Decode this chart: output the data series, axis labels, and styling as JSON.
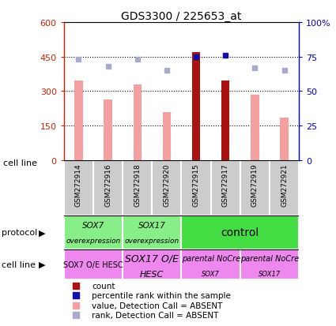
{
  "title": "GDS3300 / 225653_at",
  "samples": [
    "GSM272914",
    "GSM272916",
    "GSM272918",
    "GSM272920",
    "GSM272915",
    "GSM272917",
    "GSM272919",
    "GSM272921"
  ],
  "bar_values": [
    345,
    265,
    330,
    210,
    470,
    345,
    285,
    185
  ],
  "bar_colors": [
    "#f5a0a0",
    "#f5a0a0",
    "#f5a0a0",
    "#f5a0a0",
    "#aa1111",
    "#aa1111",
    "#f5a0a0",
    "#f5a0a0"
  ],
  "blue_dot_values": [
    73,
    68,
    73,
    65,
    75,
    76,
    67,
    65
  ],
  "blue_dot_colors": [
    "#aaaacc",
    "#aaaacc",
    "#aaaacc",
    "#aaaacc",
    "#1111aa",
    "#1111aa",
    "#aaaacc",
    "#aaaacc"
  ],
  "ylim_left": [
    0,
    600
  ],
  "ylim_right": [
    0,
    100
  ],
  "yticks_left": [
    0,
    150,
    300,
    450,
    600
  ],
  "ytick_labels_left": [
    "0",
    "150",
    "300",
    "450",
    "600"
  ],
  "yticks_right": [
    0,
    25,
    50,
    75,
    100
  ],
  "ytick_labels_right": [
    "0",
    "25",
    "50",
    "75",
    "100%"
  ],
  "left_axis_color": "#cc2200",
  "right_axis_color": "#0000cc",
  "protocol_groups": [
    {
      "label_line1": "SOX7",
      "label_line2": "overexpression",
      "start": 0,
      "end": 2,
      "color": "#88ee88"
    },
    {
      "label_line1": "SOX17",
      "label_line2": "overexpression",
      "start": 2,
      "end": 4,
      "color": "#88ee88"
    },
    {
      "label_line1": "control",
      "label_line2": "",
      "start": 4,
      "end": 8,
      "color": "#44dd44"
    }
  ],
  "cellline_groups": [
    {
      "label_line1": "SOX7 O/E HESC",
      "label_line2": "",
      "start": 0,
      "end": 2,
      "color": "#ee88ee",
      "fs1": 7,
      "fs2": 7
    },
    {
      "label_line1": "SOX17 O/E",
      "label_line2": "HESC",
      "start": 2,
      "end": 4,
      "color": "#ee88ee",
      "fs1": 9,
      "fs2": 9
    },
    {
      "label_line1": "parental NoCre",
      "label_line2": "SOX7",
      "start": 4,
      "end": 6,
      "color": "#ee88ee",
      "fs1": 7,
      "fs2": 7
    },
    {
      "label_line1": "parental NoCre",
      "label_line2": "SOX17",
      "start": 6,
      "end": 8,
      "color": "#ee88ee",
      "fs1": 7,
      "fs2": 7
    }
  ],
  "legend_items": [
    {
      "color": "#aa1111",
      "label": "count"
    },
    {
      "color": "#1111aa",
      "label": "percentile rank within the sample"
    },
    {
      "color": "#f5a0a0",
      "label": "value, Detection Call = ABSENT"
    },
    {
      "color": "#aaaacc",
      "label": "rank, Detection Call = ABSENT"
    }
  ],
  "bar_width": 0.28
}
